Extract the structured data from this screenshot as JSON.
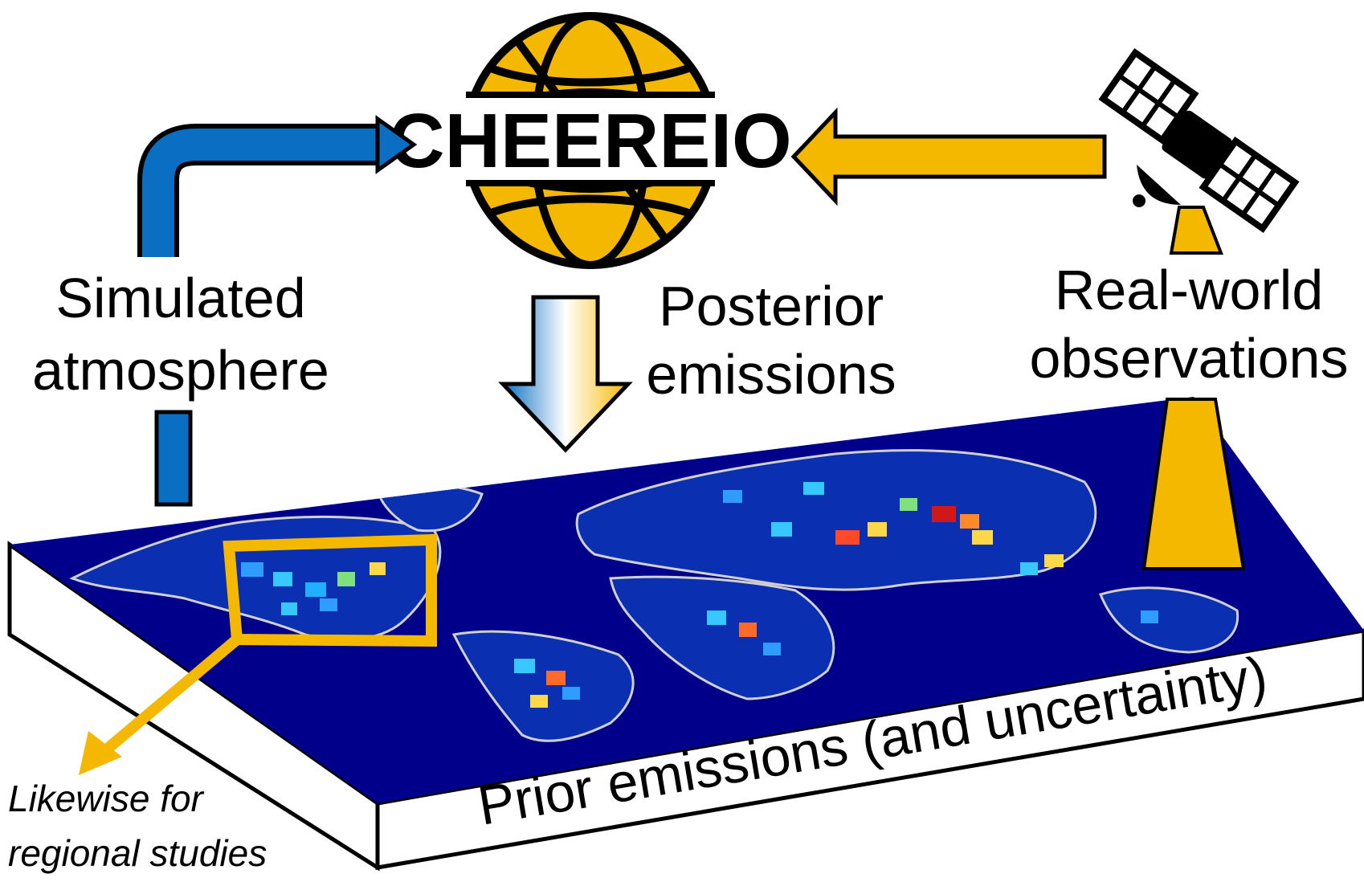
{
  "diagram": {
    "logo": {
      "text": "CHEEREIO",
      "icon": "globe-icon"
    },
    "labels": {
      "simulated_line1": "Simulated",
      "simulated_line2": "atmosphere",
      "posterior_line1": "Posterior",
      "posterior_line2": "emissions",
      "realworld_line1": "Real-world",
      "realworld_line2": "observations",
      "regional_line1": "Likewise for",
      "regional_line2": "regional studies",
      "prior": "Prior emissions (and uncertainty)"
    },
    "icons": {
      "satellite": "satellite-icon",
      "map": "world-emissions-map",
      "region_box": "region-highlight-box"
    },
    "colors": {
      "blue_arrow": "#0a6fc2",
      "gold": "#f5b800",
      "map_ocean": "#00008b",
      "coast": "#d0d0d0",
      "outline": "#000000"
    }
  }
}
